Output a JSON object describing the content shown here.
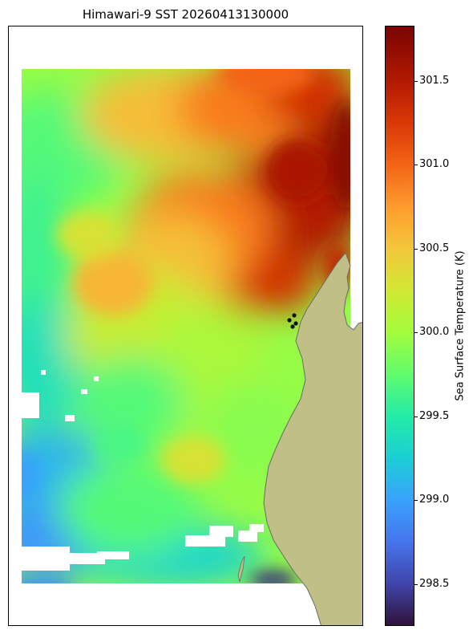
{
  "chart_data": {
    "type": "heatmap",
    "title": "Himawari-9 SST 20260413130000",
    "colorbar": {
      "label": "Sea Surface Temperature (K)",
      "colormap": "turbo",
      "range": [
        298.25,
        301.83
      ],
      "ticks": [
        "298.5",
        "299.0",
        "299.5",
        "300.0",
        "300.5",
        "301.0",
        "301.5"
      ]
    },
    "land_color": "#bfbf86",
    "missing_color": "#ffffff",
    "markers": {
      "count": 4,
      "color": "#111111"
    }
  }
}
